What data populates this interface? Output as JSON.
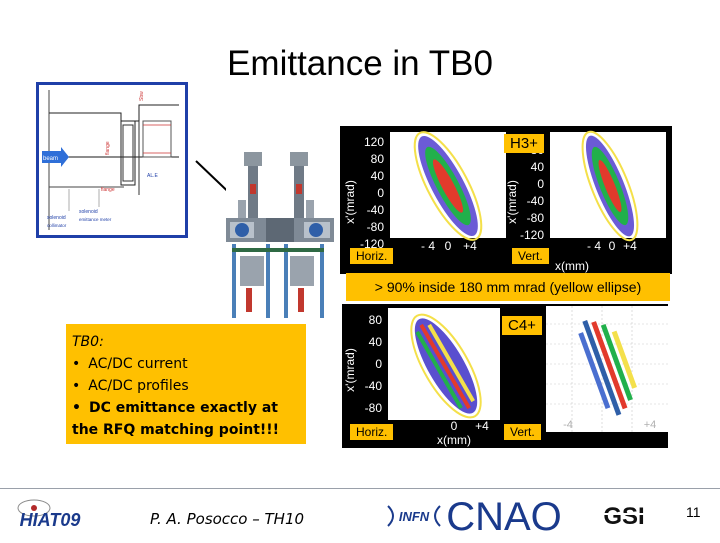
{
  "title": "Emittance in TB0",
  "schematic": {
    "labels": [
      "beam",
      "flange",
      "solenoid",
      "solenoid",
      "Sbw",
      "AL.E",
      "flange",
      "collimator",
      "emittance meter"
    ]
  },
  "plots_top": {
    "ion_label": "H3+",
    "left_label": "Horiz.",
    "right_label": "Vert.",
    "y_axis_label": "x'(mrad)",
    "x_axis_label": "x(mm)",
    "y_ticks": [
      "120",
      "80",
      "40",
      "0",
      "-40",
      "-80",
      "-120"
    ],
    "x_ticks": [
      "- 4",
      "0",
      "+4"
    ]
  },
  "ellipse_note": "> 90% inside 180 mm mrad (yellow ellipse)",
  "plots_bottom": {
    "ion_label": "C4+",
    "left_label": "Horiz.",
    "right_label": "Vert.",
    "y_axis_label": "x'(mrad)",
    "x_axis_label": "x(mm)",
    "y_ticks": [
      "80",
      "40",
      "0",
      "-40",
      "-80"
    ],
    "x_ticks": [
      "0",
      "+4"
    ],
    "right_x_ticks": [
      "-4",
      "+4"
    ]
  },
  "tb0_note": {
    "heading": "TB0:",
    "items": [
      "AC/DC current",
      "AC/DC profiles",
      "DC emittance exactly at the RFQ matching point!!!"
    ]
  },
  "footer": {
    "author": "P. A. Posocco – TH10",
    "page_number": "11",
    "logos": [
      "HIAT09",
      "INFN",
      "CNAO",
      "GSI"
    ]
  },
  "colors": {
    "highlight": "#ffc000",
    "frame_blue": "#1f3fa8",
    "cnao_blue": "#1a3a8c",
    "plot_background": "#000000"
  }
}
